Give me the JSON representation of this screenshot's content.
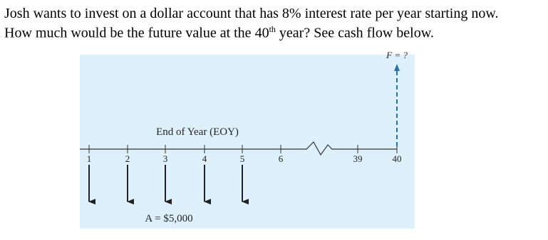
{
  "question": {
    "line1": "Josh wants to invest on a dollar account that has 8% interest rate per year starting now.",
    "line2": {
      "before": "How much would be the future value at the 40",
      "sup": "th",
      "after": " year? See cash flow below."
    }
  },
  "diagram": {
    "future_label": "F = ?",
    "axis_label": "End of Year (EOY)",
    "ticks": [
      "1",
      "2",
      "3",
      "4",
      "5",
      "6",
      "39",
      "40"
    ],
    "annuity_label": "A = $5,000"
  }
}
